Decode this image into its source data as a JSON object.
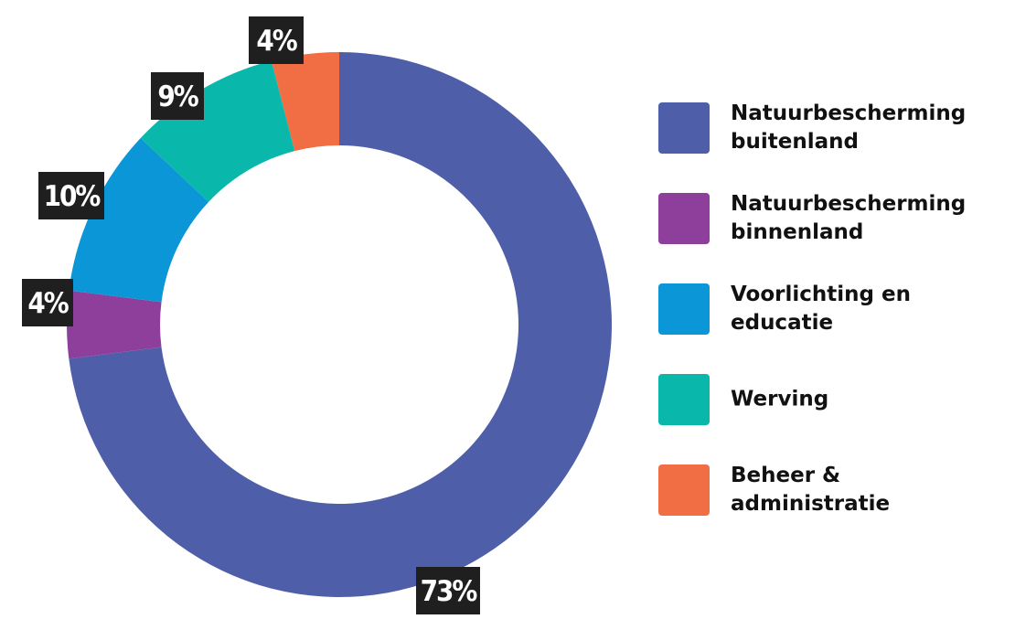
{
  "chart_data": {
    "type": "pie",
    "donut": true,
    "title": "",
    "legend_position": "right",
    "slices": [
      {
        "label": "Natuurbescherming buitenland",
        "value": 73,
        "display": "73%",
        "color": "#4f5ea9"
      },
      {
        "label": "Natuurbescherming binnenland",
        "value": 4,
        "display": "4%",
        "color": "#8d3f9b"
      },
      {
        "label": "Voorlichting en educatie",
        "value": 10,
        "display": "10%",
        "color": "#0a96d7"
      },
      {
        "label": "Werving",
        "value": 9,
        "display": "9%",
        "color": "#09b8aa"
      },
      {
        "label": "Beheer & administratie",
        "value": 4,
        "display": "4%",
        "color": "#f16d44"
      }
    ]
  },
  "legend": {
    "items": [
      {
        "label": "Natuurbescherming buitenland",
        "color": "#4f5ea9"
      },
      {
        "label": "Natuurbescherming binnenland",
        "color": "#8d3f9b"
      },
      {
        "label": "Voorlichting en educatie",
        "color": "#0a96d7"
      },
      {
        "label": "Werving",
        "color": "#09b8aa"
      },
      {
        "label": "Beheer & administratie",
        "color": "#f16d44"
      }
    ]
  }
}
